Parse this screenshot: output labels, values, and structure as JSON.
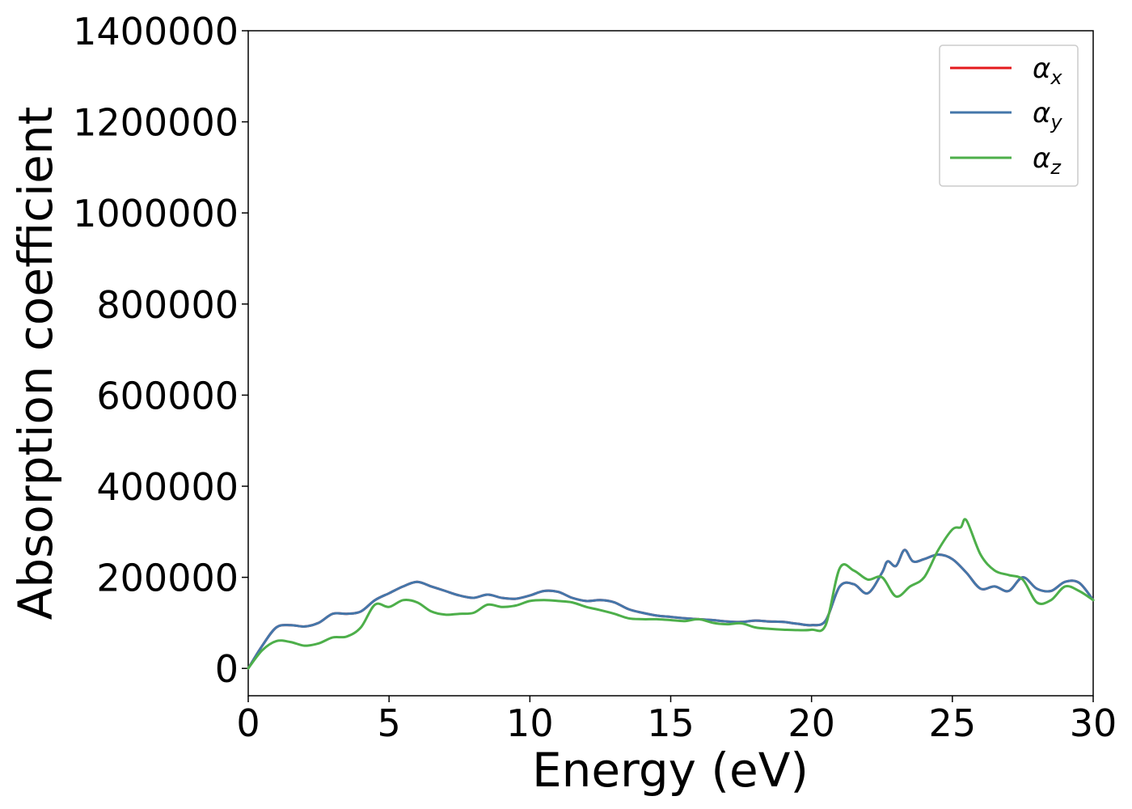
{
  "chart_data": {
    "type": "line",
    "title": "",
    "xlabel": "Energy (eV)",
    "ylabel": "Absorption coefficient",
    "xlim": [
      0,
      30
    ],
    "ylim": [
      -60000,
      1400000
    ],
    "xticks": [
      "0",
      "5",
      "10",
      "15",
      "20",
      "25",
      "30"
    ],
    "yticks": [
      "0",
      "200000",
      "400000",
      "600000",
      "800000",
      "1000000",
      "1200000",
      "1400000"
    ],
    "grid": false,
    "legend_position": "top-right",
    "series": [
      {
        "name": "α_x",
        "legend_base": "α",
        "legend_sub": "x",
        "color": "#e41a1c",
        "x": [
          0,
          0.5,
          1,
          1.5,
          2,
          2.5,
          3,
          3.5,
          4,
          4.5,
          5,
          5.5,
          6,
          6.5,
          7,
          7.5,
          8,
          8.5,
          9,
          9.5,
          10,
          10.5,
          11,
          11.5,
          12,
          12.5,
          13,
          13.5,
          14,
          14.5,
          15,
          15.5,
          16,
          16.5,
          17,
          17.5,
          18,
          18.5,
          19,
          19.5,
          20,
          20.5,
          21,
          21.5,
          22,
          22.5,
          22.7,
          23,
          23.3,
          23.6,
          24,
          24.5,
          25,
          25.5,
          26,
          26.5,
          27,
          27.5,
          28,
          28.5,
          29,
          29.5,
          30
        ],
        "y": [
          0,
          50000,
          90000,
          95000,
          92000,
          100000,
          120000,
          120000,
          125000,
          150000,
          165000,
          180000,
          190000,
          180000,
          170000,
          160000,
          155000,
          162000,
          155000,
          153000,
          160000,
          170000,
          168000,
          155000,
          148000,
          150000,
          145000,
          130000,
          122000,
          116000,
          113000,
          110000,
          108000,
          106000,
          103000,
          102000,
          105000,
          103000,
          102000,
          98000,
          95000,
          105000,
          180000,
          185000,
          165000,
          210000,
          235000,
          225000,
          260000,
          235000,
          240000,
          250000,
          240000,
          210000,
          175000,
          180000,
          170000,
          200000,
          175000,
          170000,
          190000,
          188000,
          150000
        ]
      },
      {
        "name": "α_y",
        "legend_base": "α",
        "legend_sub": "y",
        "color": "#4477aa",
        "x": [
          0,
          0.5,
          1,
          1.5,
          2,
          2.5,
          3,
          3.5,
          4,
          4.5,
          5,
          5.5,
          6,
          6.5,
          7,
          7.5,
          8,
          8.5,
          9,
          9.5,
          10,
          10.5,
          11,
          11.5,
          12,
          12.5,
          13,
          13.5,
          14,
          14.5,
          15,
          15.5,
          16,
          16.5,
          17,
          17.5,
          18,
          18.5,
          19,
          19.5,
          20,
          20.5,
          21,
          21.5,
          22,
          22.5,
          22.7,
          23,
          23.3,
          23.6,
          24,
          24.5,
          25,
          25.5,
          26,
          26.5,
          27,
          27.5,
          28,
          28.5,
          29,
          29.5,
          30
        ],
        "y": [
          0,
          50000,
          90000,
          95000,
          92000,
          100000,
          120000,
          120000,
          125000,
          150000,
          165000,
          180000,
          190000,
          180000,
          170000,
          160000,
          155000,
          162000,
          155000,
          153000,
          160000,
          170000,
          168000,
          155000,
          148000,
          150000,
          145000,
          130000,
          122000,
          116000,
          113000,
          110000,
          108000,
          106000,
          103000,
          102000,
          105000,
          103000,
          102000,
          98000,
          95000,
          105000,
          180000,
          185000,
          165000,
          210000,
          235000,
          225000,
          260000,
          235000,
          240000,
          250000,
          240000,
          210000,
          175000,
          180000,
          170000,
          200000,
          175000,
          170000,
          190000,
          188000,
          150000
        ]
      },
      {
        "name": "α_z",
        "legend_base": "α",
        "legend_sub": "z",
        "color": "#4daf4a",
        "x": [
          0,
          0.5,
          1,
          1.5,
          2,
          2.5,
          3,
          3.5,
          4,
          4.5,
          5,
          5.5,
          6,
          6.5,
          7,
          7.5,
          8,
          8.5,
          9,
          9.5,
          10,
          10.5,
          11,
          11.5,
          12,
          12.5,
          13,
          13.5,
          14,
          14.5,
          15,
          15.5,
          16,
          16.5,
          17,
          17.5,
          18,
          18.5,
          19,
          19.5,
          20,
          20.5,
          21,
          21.5,
          22,
          22.5,
          23,
          23.5,
          24,
          24.5,
          25,
          25.3,
          25.5,
          26,
          26.5,
          27,
          27.5,
          28,
          28.5,
          29,
          29.5,
          30
        ],
        "y": [
          0,
          40000,
          60000,
          58000,
          50000,
          55000,
          68000,
          70000,
          90000,
          140000,
          135000,
          150000,
          145000,
          125000,
          118000,
          120000,
          122000,
          140000,
          135000,
          138000,
          148000,
          150000,
          148000,
          145000,
          135000,
          128000,
          120000,
          110000,
          108000,
          108000,
          106000,
          104000,
          108000,
          100000,
          97000,
          99000,
          90000,
          87000,
          85000,
          84000,
          85000,
          95000,
          220000,
          215000,
          195000,
          200000,
          158000,
          180000,
          200000,
          260000,
          305000,
          310000,
          325000,
          250000,
          215000,
          205000,
          195000,
          145000,
          150000,
          180000,
          170000,
          150000
        ]
      }
    ]
  }
}
